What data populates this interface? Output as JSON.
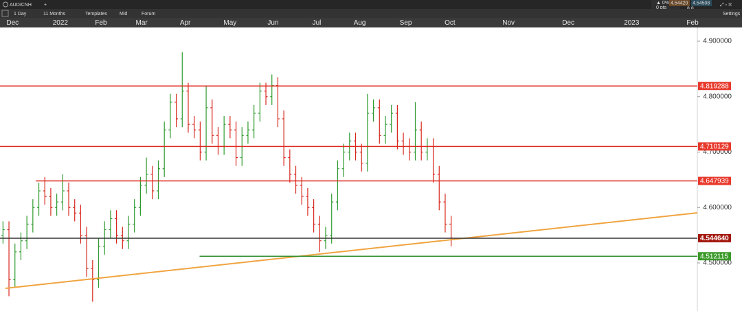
{
  "toolbar": {
    "symbol": "AUD/CNH",
    "interval": "1 Day",
    "range": "11 Months",
    "templates": "Templates",
    "price_type": "Mid",
    "forum": "Forum",
    "settings": "Settings",
    "change": "▲ 0%",
    "change_pts": "0 pts",
    "bid": "4.54420",
    "ask": "4.54508",
    "spread": "8.8"
  },
  "chart_data": {
    "type": "ohlc",
    "up_color": "#2e9a2e",
    "down_color": "#d8261c",
    "open": [
      4.55,
      4.56,
      4.47,
      4.52,
      4.54,
      4.57,
      4.6,
      4.63,
      4.62,
      4.6,
      4.61,
      4.63,
      4.6,
      4.59,
      4.55,
      4.49,
      4.47,
      4.53,
      4.56,
      4.58,
      4.55,
      4.54,
      4.57,
      4.6,
      4.64,
      4.66,
      4.63,
      4.67,
      4.74,
      4.79,
      4.76,
      4.81,
      4.75,
      4.74,
      4.7,
      4.78,
      4.73,
      4.71,
      4.75,
      4.74,
      4.69,
      4.73,
      4.74,
      4.77,
      4.81,
      4.8,
      4.82,
      4.76,
      4.69,
      4.66,
      4.64,
      4.62,
      4.6,
      4.57,
      4.54,
      4.55,
      4.61,
      4.67,
      4.7,
      4.72,
      4.7,
      4.68,
      4.77,
      4.78,
      4.73,
      4.75,
      4.77,
      4.72,
      4.71,
      4.7,
      4.74,
      4.7,
      4.71,
      4.66,
      4.61,
      4.57
    ],
    "high": [
      4.575,
      4.575,
      4.535,
      4.555,
      4.585,
      4.615,
      4.645,
      4.655,
      4.635,
      4.625,
      4.66,
      4.645,
      4.615,
      4.605,
      4.565,
      4.505,
      4.545,
      4.575,
      4.595,
      4.595,
      4.565,
      4.585,
      4.615,
      4.655,
      4.69,
      4.675,
      4.685,
      4.755,
      4.805,
      4.805,
      4.88,
      4.825,
      4.765,
      4.755,
      4.82,
      4.795,
      4.745,
      4.765,
      4.765,
      4.755,
      4.745,
      4.755,
      4.785,
      4.825,
      4.825,
      4.84,
      4.835,
      4.775,
      4.705,
      4.675,
      4.655,
      4.635,
      4.615,
      4.585,
      4.565,
      4.625,
      4.685,
      4.715,
      4.735,
      4.735,
      4.715,
      4.805,
      4.795,
      4.795,
      4.765,
      4.785,
      4.785,
      4.735,
      4.725,
      4.79,
      4.755,
      4.725,
      4.725,
      4.675,
      4.625,
      4.585
    ],
    "low": [
      4.535,
      4.44,
      4.455,
      4.505,
      4.525,
      4.555,
      4.585,
      4.605,
      4.585,
      4.585,
      4.595,
      4.585,
      4.575,
      4.535,
      4.475,
      4.43,
      4.455,
      4.515,
      4.545,
      4.535,
      4.525,
      4.525,
      4.555,
      4.585,
      4.625,
      4.615,
      4.615,
      4.655,
      4.725,
      4.745,
      4.745,
      4.735,
      4.725,
      4.685,
      4.685,
      4.715,
      4.695,
      4.695,
      4.725,
      4.675,
      4.675,
      4.715,
      4.725,
      4.755,
      4.785,
      4.785,
      4.745,
      4.675,
      4.645,
      4.625,
      4.605,
      4.585,
      4.555,
      4.52,
      4.525,
      4.535,
      4.595,
      4.655,
      4.685,
      4.685,
      4.665,
      4.665,
      4.755,
      4.715,
      4.715,
      4.735,
      4.705,
      4.695,
      4.685,
      4.685,
      4.685,
      4.685,
      4.645,
      4.595,
      4.555,
      4.53
    ],
    "close": [
      4.56,
      4.47,
      4.52,
      4.54,
      4.57,
      4.6,
      4.63,
      4.62,
      4.6,
      4.61,
      4.63,
      4.6,
      4.59,
      4.55,
      4.49,
      4.47,
      4.53,
      4.56,
      4.58,
      4.55,
      4.54,
      4.57,
      4.6,
      4.64,
      4.66,
      4.63,
      4.67,
      4.74,
      4.79,
      4.76,
      4.81,
      4.75,
      4.74,
      4.7,
      4.78,
      4.73,
      4.71,
      4.75,
      4.74,
      4.69,
      4.73,
      4.74,
      4.77,
      4.81,
      4.8,
      4.82,
      4.76,
      4.69,
      4.66,
      4.64,
      4.62,
      4.6,
      4.57,
      4.54,
      4.55,
      4.61,
      4.67,
      4.7,
      4.72,
      4.7,
      4.68,
      4.77,
      4.78,
      4.73,
      4.75,
      4.77,
      4.72,
      4.71,
      4.7,
      4.74,
      4.7,
      4.71,
      4.66,
      4.61,
      4.57,
      4.545
    ],
    "xlim": [
      -0.5,
      116.2
    ],
    "xticks": [
      {
        "value": 1.6,
        "label": "Dec"
      },
      {
        "value": 9.6,
        "label": "2022"
      },
      {
        "value": 16.4,
        "label": "Feb"
      },
      {
        "value": 23.2,
        "label": "Mar"
      },
      {
        "value": 30.5,
        "label": "Apr"
      },
      {
        "value": 38,
        "label": "May"
      },
      {
        "value": 45.2,
        "label": "Jun"
      },
      {
        "value": 52.5,
        "label": "Jul"
      },
      {
        "value": 59.7,
        "label": "Aug"
      },
      {
        "value": 67.4,
        "label": "Sep"
      },
      {
        "value": 74.8,
        "label": "Oct"
      },
      {
        "value": 84.6,
        "label": "Nov"
      },
      {
        "value": 94.6,
        "label": "Dec"
      },
      {
        "value": 105.2,
        "label": "2023"
      },
      {
        "value": 115.4,
        "label": "Feb"
      }
    ],
    "ylim": [
      4.4133,
      4.9248
    ],
    "yticks": [
      {
        "value": 4.5,
        "label": "4.500000"
      },
      {
        "value": 4.6,
        "label": "4.600000"
      },
      {
        "value": 4.7,
        "label": "4.700000"
      },
      {
        "value": 4.8,
        "label": "4.800000"
      },
      {
        "value": 4.9,
        "label": "4.900000"
      }
    ],
    "levels": [
      {
        "price": 4.819288,
        "color": "#e0281c",
        "box_color": "#e8392c"
      },
      {
        "price": 4.710129,
        "color": "#e0281c",
        "box_color": "#e8392c"
      },
      {
        "price": 4.647939,
        "color": "#e0281c",
        "box_color": "#e8392c",
        "from": 5.5
      },
      {
        "price": 4.54464,
        "label": "4.544640",
        "color": "#333333",
        "box_color": "#a3180e"
      },
      {
        "price": 4.512115,
        "color": "#2f8f2f",
        "box_color": "#3b9a2a",
        "from": 32.9
      }
    ],
    "trendline": {
      "x": [
        0.4,
        116.2
      ],
      "y": [
        4.4542,
        4.5904
      ],
      "color": "#f0a440"
    }
  }
}
